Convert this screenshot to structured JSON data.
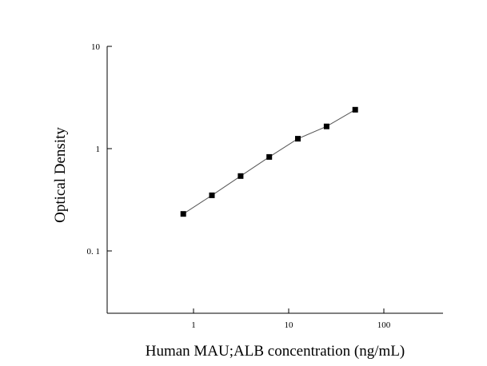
{
  "chart_data": {
    "type": "scatter",
    "title": "",
    "xlabel": "Human MAU;ALB concentration (ng/mL)",
    "ylabel": "Optical Density",
    "xscale": "log",
    "yscale": "log",
    "xlim": [
      0.1,
      400
    ],
    "ylim": [
      0.03,
      10
    ],
    "xticks": [
      {
        "value": 1,
        "label": "1"
      },
      {
        "value": 10,
        "label": "10"
      },
      {
        "value": 100,
        "label": "100"
      }
    ],
    "yticks": [
      {
        "value": 0.1,
        "label": "0. 1"
      },
      {
        "value": 1,
        "label": "1"
      },
      {
        "value": 10,
        "label": "10"
      }
    ],
    "grid": false,
    "fit_line": true,
    "series": [
      {
        "marker": "square",
        "color": "#000000",
        "x": [
          0.78,
          1.56,
          3.125,
          6.25,
          12.5,
          25,
          50
        ],
        "y": [
          0.23,
          0.35,
          0.54,
          0.83,
          1.25,
          1.65,
          2.4
        ]
      }
    ]
  }
}
